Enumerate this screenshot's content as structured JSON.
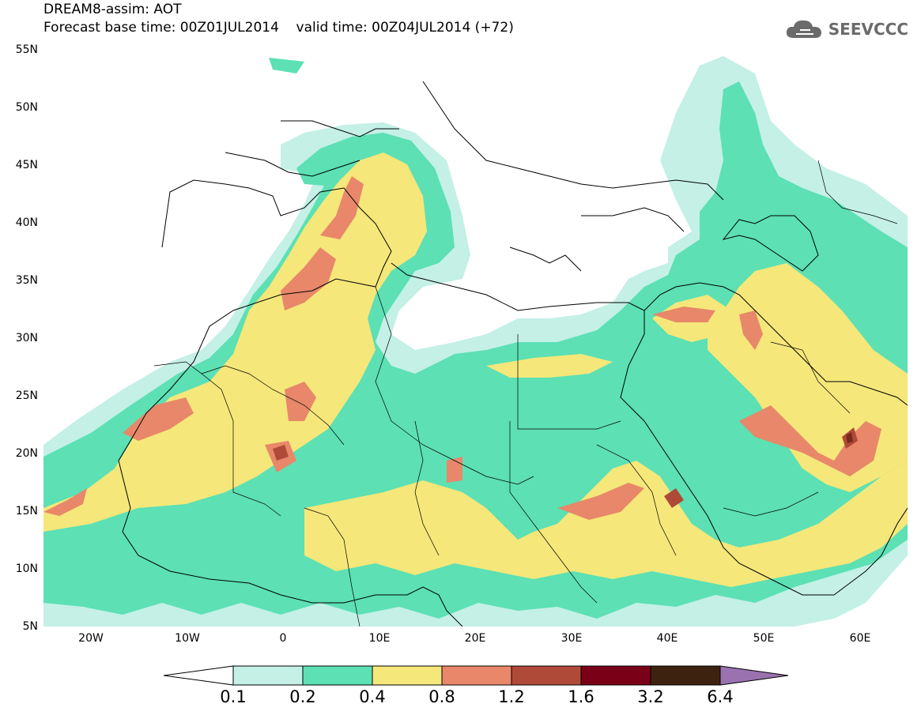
{
  "title": {
    "line1": "DREAM8-assim: AOT",
    "line2": "Forecast base time: 00Z01JUL2014    valid time: 00Z04JUL2014 (+72)"
  },
  "logo": {
    "text": "SEEVCCC",
    "icon": "cloud-icon"
  },
  "map": {
    "lon_range": [
      -25,
      65
    ],
    "lat_range": [
      5,
      55
    ],
    "lat_ticks": [
      "55N",
      "50N",
      "45N",
      "40N",
      "35N",
      "30N",
      "25N",
      "20N",
      "15N",
      "10N",
      "5N"
    ],
    "lon_ticks": [
      "20W",
      "10W",
      "0",
      "10E",
      "20E",
      "30E",
      "40E",
      "50E",
      "60E"
    ]
  },
  "colorbar": {
    "labels": [
      "0.1",
      "0.2",
      "0.4",
      "0.8",
      "1.2",
      "1.6",
      "3.2",
      "6.4"
    ],
    "colors": [
      "#ffffff",
      "#c4f0e6",
      "#5ce0b4",
      "#f5e77a",
      "#e8876a",
      "#b04a38",
      "#7a0018",
      "#3d2210",
      "#9b72b0"
    ]
  },
  "field_colors": {
    "c1": "#c4f0e6",
    "c2": "#5ce0b4",
    "c3": "#f5e77a",
    "c4": "#e8876a",
    "c5": "#b04a38",
    "c6": "#7a2a1c"
  }
}
